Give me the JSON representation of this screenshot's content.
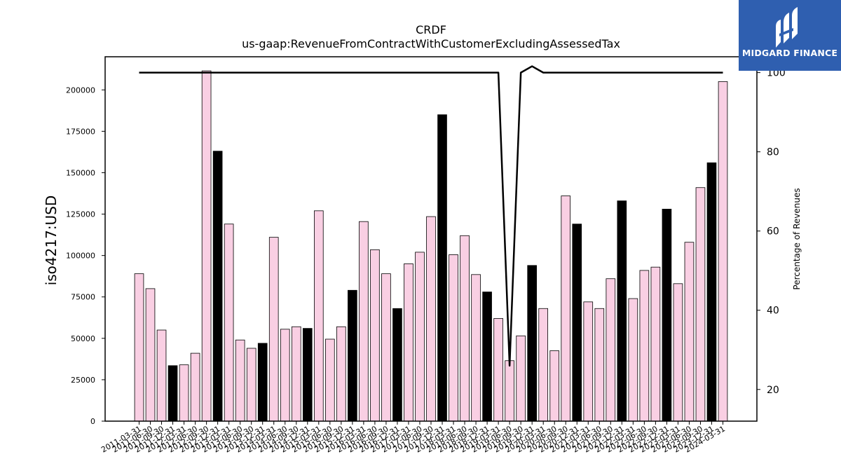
{
  "logo": {
    "text": "MIDGARD FINANCE"
  },
  "chart_data": {
    "type": "bar",
    "title": "CRDF",
    "subtitle": "us-gaap:RevenueFromContractWithCustomerExcludingAssessedTax",
    "ylabel": "iso4217:USD",
    "ylabel_right": "Percentage of Revenues",
    "ylim": [
      0,
      220000
    ],
    "ylim_right": [
      12,
      104
    ],
    "yticks": [
      0,
      25000,
      50000,
      75000,
      100000,
      125000,
      150000,
      175000,
      200000
    ],
    "yticks_right": [
      20,
      40,
      60,
      80,
      100
    ],
    "grid": false,
    "colors": {
      "pink": "#f9cfe3",
      "black": "#000000"
    },
    "categories": [
      "2011-03-31",
      "2011-06-30",
      "2011-09-30",
      "2011-12-31",
      "2012-03-31",
      "2012-06-30",
      "2012-09-30",
      "2012-12-31",
      "2013-03-31",
      "2013-06-30",
      "2013-09-30",
      "2013-12-31",
      "2014-03-31",
      "2014-06-30",
      "2014-09-30",
      "2014-12-31",
      "2015-03-31",
      "2015-06-30",
      "2015-09-30",
      "2015-12-31",
      "2016-03-31",
      "2016-06-30",
      "2016-09-30",
      "2016-12-31",
      "2017-03-31",
      "2017-06-30",
      "2017-09-30",
      "2017-12-31",
      "2018-03-31",
      "2018-06-30",
      "2018-09-30",
      "2018-12-31",
      "2019-03-31",
      "2019-06-30",
      "2019-09-30",
      "2019-12-31",
      "2020-03-31",
      "2020-06-30",
      "2020-09-30",
      "2020-12-31",
      "2021-03-31",
      "2021-06-30",
      "2021-09-30",
      "2021-12-31",
      "2022-03-31",
      "2022-06-30",
      "2022-09-30",
      "2022-12-31",
      "2023-03-31",
      "2023-06-30",
      "2023-09-30",
      "2023-12-31",
      "2024-03-31"
    ],
    "values": [
      89000,
      80000,
      55000,
      33500,
      34000,
      41000,
      211500,
      163000,
      119000,
      49000,
      44000,
      47000,
      111000,
      55500,
      57000,
      56000,
      127000,
      49500,
      57000,
      79000,
      120500,
      103500,
      89000,
      68000,
      95000,
      102000,
      123500,
      185000,
      100500,
      112000,
      88500,
      78000,
      62000,
      36500,
      51500,
      94000,
      68000,
      42500,
      136000,
      119000,
      72000,
      68000,
      86000,
      133000,
      74000,
      91000,
      93000,
      128000,
      83000,
      108000,
      141000,
      156000,
      205000
    ],
    "bar_colors": [
      "pink",
      "pink",
      "pink",
      "black",
      "pink",
      "pink",
      "pink",
      "black",
      "pink",
      "pink",
      "pink",
      "black",
      "pink",
      "pink",
      "pink",
      "black",
      "pink",
      "pink",
      "pink",
      "black",
      "pink",
      "pink",
      "pink",
      "black",
      "pink",
      "pink",
      "pink",
      "black",
      "pink",
      "pink",
      "pink",
      "black",
      "pink",
      "pink",
      "pink",
      "black",
      "pink",
      "pink",
      "pink",
      "black",
      "pink",
      "pink",
      "pink",
      "black",
      "pink",
      "pink",
      "pink",
      "black",
      "pink",
      "pink",
      "pink",
      "black",
      "pink"
    ],
    "series": [
      {
        "axis": "right",
        "type": "line",
        "values": [
          100,
          100,
          100,
          100,
          100,
          100,
          100,
          100,
          100,
          100,
          100,
          100,
          100,
          100,
          100,
          100,
          100,
          100,
          100,
          100,
          100,
          100,
          100,
          100,
          100,
          100,
          100,
          100,
          100,
          100,
          100,
          100,
          100,
          26,
          100,
          101.6,
          100,
          100,
          100,
          100,
          100,
          100,
          100,
          100,
          100,
          100,
          100,
          100,
          100,
          100,
          100,
          100,
          100
        ]
      }
    ]
  }
}
